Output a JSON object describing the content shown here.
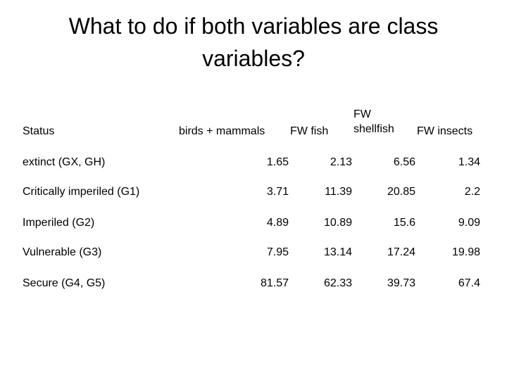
{
  "title": "What to do if both variables are class variables?",
  "table": {
    "headers": {
      "status": "Status",
      "birds_mammals": "birds + mammals",
      "fw_fish": "FW fish",
      "fw_shellfish_line1": "FW",
      "fw_shellfish_line2": "shellfish",
      "fw_insects": "FW insects"
    },
    "rows": [
      {
        "label": "extinct (GX, GH)",
        "values": [
          "1.65",
          "2.13",
          "6.56",
          "1.34"
        ]
      },
      {
        "label": "Critically imperiled (G1)",
        "values": [
          "3.71",
          "11.39",
          "20.85",
          "2.2"
        ]
      },
      {
        "label": "Imperiled (G2)",
        "values": [
          "4.89",
          "10.89",
          "15.6",
          "9.09"
        ]
      },
      {
        "label": "Vulnerable (G3)",
        "values": [
          "7.95",
          "13.14",
          "17.24",
          "19.98"
        ]
      },
      {
        "label": "Secure (G4, G5)",
        "values": [
          "81.57",
          "62.33",
          "39.73",
          "67.4"
        ]
      }
    ]
  }
}
